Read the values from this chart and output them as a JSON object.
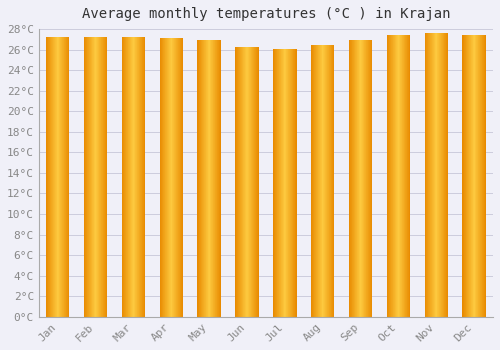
{
  "title": "Average monthly temperatures (°C ) in Krajan",
  "months": [
    "Jan",
    "Feb",
    "Mar",
    "Apr",
    "May",
    "Jun",
    "Jul",
    "Aug",
    "Sep",
    "Oct",
    "Nov",
    "Dec"
  ],
  "temperatures": [
    27.2,
    27.2,
    27.2,
    27.1,
    26.9,
    26.3,
    26.1,
    26.4,
    26.9,
    27.4,
    27.6,
    27.4
  ],
  "ylim": [
    0,
    28
  ],
  "yticks": [
    0,
    2,
    4,
    6,
    8,
    10,
    12,
    14,
    16,
    18,
    20,
    22,
    24,
    26,
    28
  ],
  "bar_color_center": "#FDCA40",
  "bar_color_edge": "#E88A00",
  "background_color": "#F0F0F8",
  "grid_color": "#CCCCDD",
  "title_fontsize": 10,
  "tick_fontsize": 8,
  "title_font": "monospace",
  "tick_font": "monospace",
  "bar_width": 0.62,
  "gradient_steps": 60
}
